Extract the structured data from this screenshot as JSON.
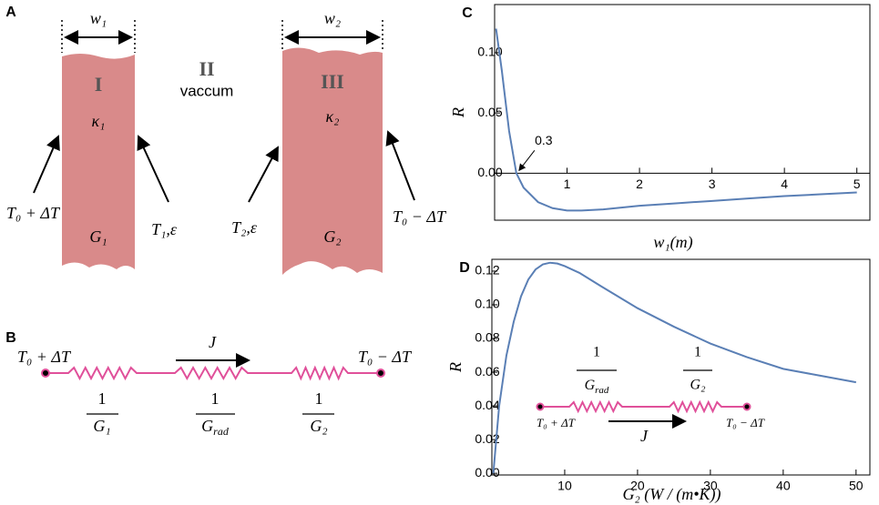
{
  "diagram": {
    "panel_a": {
      "label": "A",
      "w1": "w₁",
      "w2": "w₂",
      "region_1": "I",
      "region_2": "II",
      "vacuum": "vaccum",
      "region_3": "III",
      "kappa1": "κ₁",
      "kappa2": "κ₂",
      "left_temp": "T₀ + ΔT",
      "t1": "T₁,ε",
      "t2": "T₂,ε",
      "right_temp": "T₀ − ΔT",
      "g1": "G₁",
      "g2": "G₂"
    },
    "panel_b": {
      "label": "B",
      "left_temp": "T₀ + ΔT",
      "right_temp": "T₀ − ΔT",
      "flux": "J",
      "num1": "1",
      "den1": "G₁",
      "num2": "1",
      "den2": {
        "base": "G",
        "sub": "rad"
      },
      "num3": "1",
      "den3": "G₂"
    },
    "inset_d": {
      "num1": "1",
      "den1": {
        "base": "G",
        "sub": "rad"
      },
      "num2": "1",
      "den2": "G₂",
      "left_temp": "T₀ + ΔT",
      "right_temp": "T₀ − ΔT",
      "flux": "J"
    }
  },
  "chart_data": [
    {
      "type": "line",
      "panel": "C",
      "y_label": "R",
      "x_label": "w₁(m)",
      "color": "#5a7fb5",
      "xaxis_at": 0,
      "x": [
        0.02,
        0.1,
        0.2,
        0.3,
        0.4,
        0.6,
        0.8,
        1.0,
        1.2,
        1.5,
        2,
        2.5,
        3,
        3.5,
        4,
        4.5,
        5
      ],
      "values": [
        0.12,
        0.085,
        0.035,
        0.0,
        -0.012,
        -0.024,
        -0.029,
        -0.031,
        -0.031,
        -0.03,
        -0.027,
        -0.025,
        -0.023,
        -0.021,
        -0.019,
        -0.0175,
        -0.016
      ],
      "xlim": [
        0,
        5.18
      ],
      "ylim": [
        -0.039,
        0.14
      ],
      "xticks": [
        1,
        2,
        3,
        4,
        5
      ],
      "yticks": [
        {
          "value": 0,
          "label": "0.00"
        },
        {
          "value": 0.05,
          "label": "0.05"
        },
        {
          "value": 0.1,
          "label": "0.10"
        }
      ],
      "annotation": {
        "text": "0.3",
        "x": 0.3
      }
    },
    {
      "type": "line",
      "panel": "D",
      "y_label": "R",
      "x_label": "G₂ (W / (m•K))",
      "color": "#5a7fb5",
      "x": [
        0.2,
        1,
        2,
        3,
        4,
        5,
        6,
        7,
        8,
        9,
        10,
        12,
        15,
        20,
        25,
        30,
        35,
        40,
        45,
        50
      ],
      "values": [
        0,
        0.04,
        0.07,
        0.09,
        0.105,
        0.115,
        0.121,
        0.124,
        0.125,
        0.1245,
        0.123,
        0.119,
        0.111,
        0.098,
        0.087,
        0.077,
        0.069,
        0.062,
        0.058,
        0.054
      ],
      "xlim": [
        0,
        51.9
      ],
      "ylim": [
        -0.001,
        0.127
      ],
      "xticks": [
        10,
        20,
        30,
        40,
        50
      ],
      "yticks": [
        {
          "value": 0,
          "label": "0.00"
        },
        {
          "value": 0.02,
          "label": "0.02"
        },
        {
          "value": 0.04,
          "label": "0.04"
        },
        {
          "value": 0.06,
          "label": "0.06"
        },
        {
          "value": 0.08,
          "label": "0.08"
        },
        {
          "value": 0.1,
          "label": "0.10"
        },
        {
          "value": 0.12,
          "label": "0.12"
        }
      ]
    }
  ]
}
